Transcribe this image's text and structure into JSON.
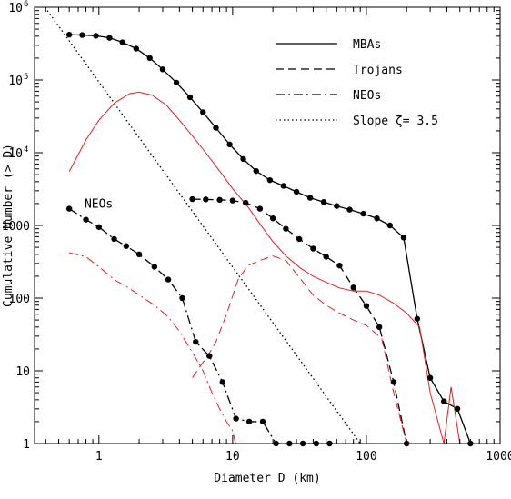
{
  "chart_data": {
    "type": "line",
    "title": "",
    "xlabel": "Diameter D (km)",
    "ylabel": "Cumulative Number (> D)",
    "x_scale": "log",
    "y_scale": "log",
    "xlim": [
      0.33,
      1000
    ],
    "ylim": [
      1,
      1000000
    ],
    "x_ticks": [
      {
        "value": 1,
        "label": "1"
      },
      {
        "value": 10,
        "label": "10"
      },
      {
        "value": 100,
        "label": "100"
      },
      {
        "value": 1000,
        "label": "1000"
      }
    ],
    "y_ticks": [
      {
        "value": 1,
        "label": "1"
      },
      {
        "value": 10,
        "label": "10"
      },
      {
        "value": 100,
        "label": "100"
      },
      {
        "value": 1000,
        "label": "1000"
      },
      {
        "value": 10000,
        "label": "10",
        "exp": "4"
      },
      {
        "value": 100000,
        "label": "10",
        "exp": "5"
      },
      {
        "value": 1000000,
        "label": "10",
        "exp": "6"
      }
    ],
    "grid": false,
    "legend_position": "top-right",
    "legend": [
      {
        "label": "MBAs",
        "style": "solid"
      },
      {
        "label": "Trojans",
        "style": "dashed"
      },
      {
        "label": "NEOs",
        "style": "dashdot"
      },
      {
        "label": "Slope ζ= 3.5",
        "style": "dotted"
      }
    ],
    "annotations": [
      {
        "text": "NEOs",
        "x": 0.78,
        "y": 1750
      }
    ],
    "series": [
      {
        "name": "MBAs",
        "style": "solid",
        "color": "#000000",
        "markers": true,
        "points": [
          [
            0.6,
            420000
          ],
          [
            0.75,
            415000
          ],
          [
            0.95,
            405000
          ],
          [
            1.2,
            380000
          ],
          [
            1.5,
            330000
          ],
          [
            1.9,
            270000
          ],
          [
            2.4,
            200000
          ],
          [
            3.0,
            140000
          ],
          [
            3.8,
            92000
          ],
          [
            4.8,
            58000
          ],
          [
            6.0,
            36000
          ],
          [
            7.5,
            22000
          ],
          [
            9.5,
            13000
          ],
          [
            12,
            8200
          ],
          [
            15,
            5600
          ],
          [
            19,
            4200
          ],
          [
            24,
            3500
          ],
          [
            30,
            2900
          ],
          [
            38,
            2400
          ],
          [
            48,
            2100
          ],
          [
            60,
            1850
          ],
          [
            75,
            1650
          ],
          [
            95,
            1450
          ],
          [
            120,
            1250
          ],
          [
            150,
            1000
          ],
          [
            190,
            680
          ],
          [
            240,
            52
          ],
          [
            300,
            8
          ],
          [
            380,
            3.8
          ],
          [
            480,
            3.0
          ],
          [
            600,
            1.0
          ]
        ]
      },
      {
        "name": "Trojans",
        "style": "dashed",
        "color": "#000000",
        "markers": true,
        "points": [
          [
            5,
            2300
          ],
          [
            6.3,
            2280
          ],
          [
            8,
            2250
          ],
          [
            10,
            2200
          ],
          [
            12.5,
            2050
          ],
          [
            16,
            1700
          ],
          [
            20,
            1250
          ],
          [
            25,
            900
          ],
          [
            31.5,
            650
          ],
          [
            40,
            480
          ],
          [
            50,
            370
          ],
          [
            63,
            280
          ],
          [
            80,
            140
          ],
          [
            100,
            78
          ],
          [
            125,
            40
          ],
          [
            160,
            7
          ],
          [
            200,
            1
          ]
        ]
      },
      {
        "name": "NEOs",
        "style": "dashdot",
        "color": "#000000",
        "markers": true,
        "points": [
          [
            0.6,
            1700
          ],
          [
            0.8,
            1200
          ],
          [
            1.0,
            950
          ],
          [
            1.3,
            650
          ],
          [
            1.6,
            520
          ],
          [
            2.0,
            400
          ],
          [
            2.6,
            270
          ],
          [
            3.3,
            180
          ],
          [
            4.2,
            100
          ],
          [
            5.3,
            25
          ],
          [
            6.7,
            16
          ],
          [
            8.4,
            7
          ],
          [
            10.6,
            2.2
          ],
          [
            13.3,
            2
          ],
          [
            16.8,
            2
          ],
          [
            21.1,
            1
          ],
          [
            26.6,
            1
          ],
          [
            33.5,
            1
          ],
          [
            42.2,
            1
          ],
          [
            53.1,
            1
          ]
        ]
      },
      {
        "name": "Slope ζ= 3.5",
        "style": "dotted",
        "color": "#000000",
        "markers": false,
        "points": [
          [
            0.395,
            1000000
          ],
          [
            90,
            1
          ]
        ]
      },
      {
        "style": "solid",
        "color": "#dd2222",
        "markers": false,
        "points": [
          [
            0.6,
            5500
          ],
          [
            0.8,
            15000
          ],
          [
            1.0,
            28000
          ],
          [
            1.3,
            48000
          ],
          [
            1.7,
            65000
          ],
          [
            2.0,
            68000
          ],
          [
            2.5,
            62000
          ],
          [
            3.2,
            45000
          ],
          [
            4.0,
            28000
          ],
          [
            5.0,
            17000
          ],
          [
            6.3,
            10000
          ],
          [
            8.0,
            5600
          ],
          [
            10,
            3200
          ],
          [
            13,
            1800
          ],
          [
            16,
            1050
          ],
          [
            20,
            600
          ],
          [
            25,
            380
          ],
          [
            32,
            260
          ],
          [
            40,
            200
          ],
          [
            50,
            165
          ],
          [
            63,
            138
          ],
          [
            80,
            125
          ],
          [
            100,
            125
          ],
          [
            125,
            110
          ],
          [
            160,
            85
          ],
          [
            200,
            62
          ],
          [
            250,
            40
          ],
          [
            300,
            5
          ],
          [
            380,
            1
          ],
          [
            430,
            6
          ],
          [
            500,
            1
          ]
        ]
      },
      {
        "style": "dashed",
        "color": "#dd2222",
        "markers": false,
        "points": [
          [
            5,
            8
          ],
          [
            5.8,
            12
          ],
          [
            6.5,
            16
          ],
          [
            7.5,
            25
          ],
          [
            9,
            60
          ],
          [
            11,
            180
          ],
          [
            13,
            280
          ],
          [
            16,
            330
          ],
          [
            20,
            380
          ],
          [
            25,
            330
          ],
          [
            31,
            200
          ],
          [
            40,
            110
          ],
          [
            50,
            80
          ],
          [
            63,
            62
          ],
          [
            80,
            50
          ],
          [
            100,
            42
          ],
          [
            130,
            28
          ],
          [
            160,
            5
          ],
          [
            200,
            1
          ]
        ]
      },
      {
        "style": "dashdot",
        "color": "#dd2222",
        "markers": false,
        "points": [
          [
            0.6,
            420
          ],
          [
            0.8,
            370
          ],
          [
            1.0,
            270
          ],
          [
            1.3,
            180
          ],
          [
            1.7,
            135
          ],
          [
            2.0,
            110
          ],
          [
            2.6,
            80
          ],
          [
            3.3,
            55
          ],
          [
            4.0,
            35
          ],
          [
            5.0,
            18
          ],
          [
            6.0,
            10
          ],
          [
            7.0,
            5
          ],
          [
            8.0,
            3
          ],
          [
            9.0,
            2
          ],
          [
            10,
            1.5
          ],
          [
            10.5,
            1
          ]
        ]
      }
    ]
  }
}
